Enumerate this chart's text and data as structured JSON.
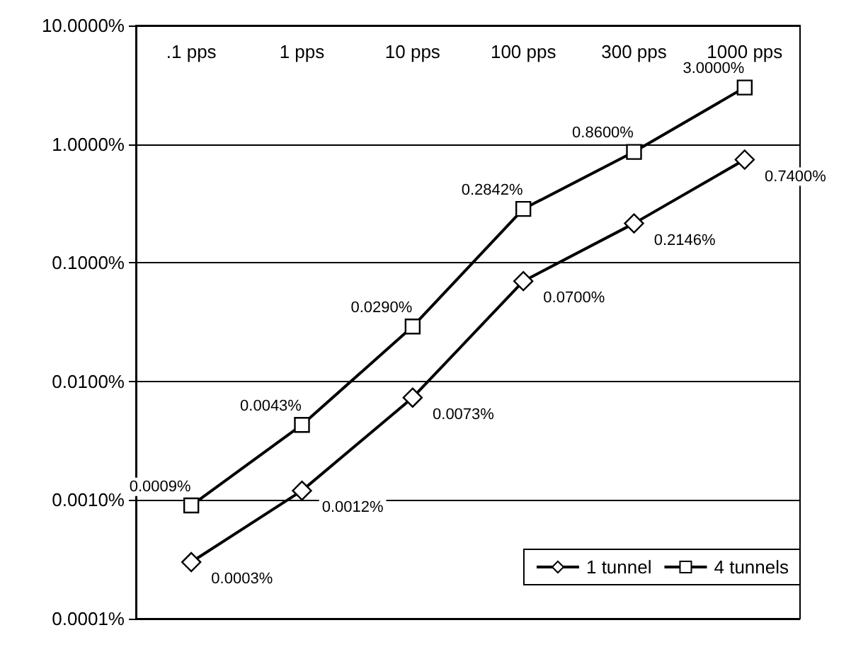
{
  "chart_data": {
    "type": "line",
    "categories": [
      ".1 pps",
      "1 pps",
      "10 pps",
      "100 pps",
      "300 pps",
      "1000 pps"
    ],
    "series": [
      {
        "name": "1 tunnel",
        "color": "#000000",
        "marker": "diamond",
        "values": [
          0.0003,
          0.0012,
          0.0073,
          0.07,
          0.2146,
          0.74
        ],
        "value_labels": [
          "0.0003%",
          "0.0012%",
          "0.0073%",
          "0.0700%",
          "0.2146%",
          "0.7400%"
        ]
      },
      {
        "name": "4 tunnels",
        "color": "#000000",
        "marker": "square",
        "values": [
          0.0009,
          0.0043,
          0.029,
          0.2842,
          0.86,
          3.0
        ],
        "value_labels": [
          "0.0009%",
          "0.0043%",
          "0.0290%",
          "0.2842%",
          "0.8600%",
          "3.0000%"
        ]
      }
    ],
    "log": "y",
    "ylim": [
      0.0001,
      10
    ],
    "yticks": [
      {
        "value": 0.0001,
        "label": "0.0001%"
      },
      {
        "value": 0.001,
        "label": "0.0010%"
      },
      {
        "value": 0.01,
        "label": "0.0100%"
      },
      {
        "value": 0.1,
        "label": "0.1000%"
      },
      {
        "value": 1,
        "label": "1.0000%"
      },
      {
        "value": 10,
        "label": "10.0000%"
      }
    ],
    "grid": "y",
    "legend": "bottom right",
    "line_style": "solid"
  }
}
